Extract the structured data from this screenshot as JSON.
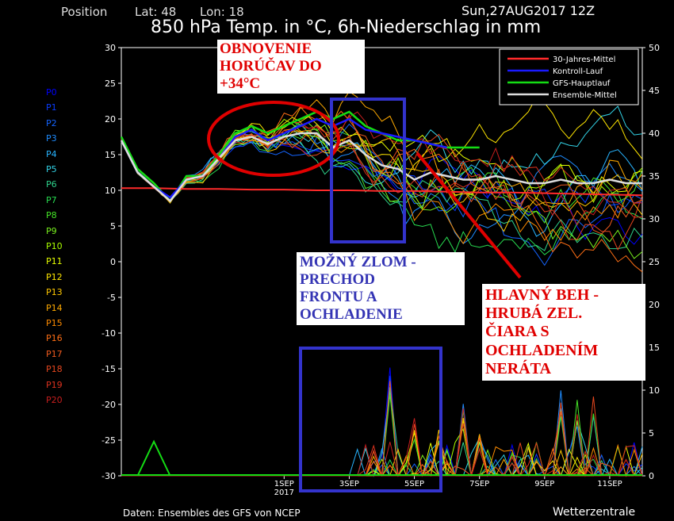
{
  "header": {
    "position_label": "Position",
    "lat_label": "Lat: 48",
    "lon_label": "Lon: 18",
    "datetime": "Sun,27AUG2017 12Z",
    "title": "850 hPa Temp. in °C, 6h-Niederschlag in mm"
  },
  "footer": {
    "source": "Daten: Ensembles des GFS von NCEP",
    "brand": "Wetterzentrale"
  },
  "annotations": {
    "heat": "OBNOVENIE\nHORÚČAV DO\n+34°C",
    "front": "MOŽNÝ ZLOM -\nPRECHOD\nFRONTU A\nOCHLADENIE",
    "main": "HLAVNÝ BEH -\nHRUBÁ ZEL.\nČIARA S\nOCHLADENÍM\nNERÁTA"
  },
  "members": [
    {
      "name": "P0",
      "color": "#0000ff"
    },
    {
      "name": "P1",
      "color": "#0a3cff"
    },
    {
      "name": "P2",
      "color": "#1464ff"
    },
    {
      "name": "P3",
      "color": "#1e8cff"
    },
    {
      "name": "P4",
      "color": "#28b4ff"
    },
    {
      "name": "P5",
      "color": "#32d2e6"
    },
    {
      "name": "P6",
      "color": "#2ed28c"
    },
    {
      "name": "P7",
      "color": "#28dc50"
    },
    {
      "name": "P8",
      "color": "#46e628"
    },
    {
      "name": "P9",
      "color": "#78f01e"
    },
    {
      "name": "P10",
      "color": "#aaff00"
    },
    {
      "name": "P11",
      "color": "#e6ff00"
    },
    {
      "name": "P12",
      "color": "#ffe600"
    },
    {
      "name": "P13",
      "color": "#ffc800"
    },
    {
      "name": "P14",
      "color": "#ffaa00"
    },
    {
      "name": "P15",
      "color": "#ff8c00"
    },
    {
      "name": "P16",
      "color": "#ff6e14"
    },
    {
      "name": "P17",
      "color": "#f05a1e"
    },
    {
      "name": "P18",
      "color": "#e6461e"
    },
    {
      "name": "P19",
      "color": "#dc321e"
    },
    {
      "name": "P20",
      "color": "#c81e1e"
    }
  ],
  "chart_data": {
    "type": "line",
    "title": "850 hPa Temp. in °C, 6h-Niederschlag in mm",
    "x_ticks": [
      "1SEP 2017",
      "3SEP",
      "5SEP",
      "7SEP",
      "9SEP",
      "11SEP"
    ],
    "x_range_days_after_init": [
      0,
      16
    ],
    "y_left": {
      "label": "850 hPa Temp. °C",
      "range": [
        -30,
        30
      ],
      "ticks": [
        30,
        25,
        20,
        15,
        10,
        5,
        0,
        -5,
        -10,
        -15,
        -20,
        -25,
        -30
      ]
    },
    "y_right": {
      "label": "6h-Niederschlag mm",
      "range": [
        0,
        50
      ],
      "ticks": [
        50,
        45,
        40,
        35,
        30,
        25,
        20,
        15,
        10,
        5,
        0
      ]
    },
    "legend": {
      "position": "top-right",
      "entries": [
        {
          "label": "30-Jahres-Mittel",
          "color": "#ff2a2a"
        },
        {
          "label": "Kontroll-Lauf",
          "color": "#1a1aff"
        },
        {
          "label": "GFS-Hauptlauf",
          "color": "#14dc14"
        },
        {
          "label": "Ensemble-Mittel",
          "color": "#dddddd"
        }
      ]
    },
    "series": [
      {
        "name": "30-Jahres-Mittel",
        "x": [
          0,
          1,
          2,
          3,
          4,
          5,
          6,
          7,
          8,
          9,
          10,
          11,
          12,
          13,
          14,
          15,
          16
        ],
        "values": [
          10.3,
          10.3,
          10.2,
          10.2,
          10.1,
          10.1,
          10.0,
          10.0,
          9.9,
          9.9,
          9.8,
          9.7,
          9.7,
          9.6,
          9.5,
          9.4,
          9.3
        ]
      },
      {
        "name": "GFS-Hauptlauf",
        "x": [
          0,
          0.5,
          1,
          1.5,
          2,
          2.5,
          3,
          3.5,
          4,
          4.5,
          5,
          5.5,
          6,
          6.5,
          7,
          7.5,
          8,
          8.5,
          9,
          9.5,
          10,
          10.5,
          11
        ],
        "values": [
          17.5,
          13,
          11,
          8.5,
          12,
          12,
          15,
          18,
          19,
          18,
          19,
          20,
          21,
          20,
          21,
          19,
          18,
          17,
          17,
          16.5,
          16,
          16,
          16
        ]
      },
      {
        "name": "Kontroll-Lauf",
        "x": [
          0,
          0.5,
          1,
          1.5,
          2,
          2.5,
          3,
          3.5,
          4,
          4.5,
          5,
          5.5,
          6,
          6.5,
          7,
          7.5,
          8,
          8.5,
          9,
          9.5,
          10
        ],
        "values": [
          17,
          12.5,
          10.5,
          9,
          11.5,
          12,
          14.5,
          17.5,
          18.5,
          17,
          18,
          19,
          20,
          19,
          20,
          18.5,
          18,
          17.5,
          17,
          16.5,
          16
        ]
      },
      {
        "name": "Ensemble-Mittel",
        "x": [
          0,
          0.5,
          1,
          1.5,
          2,
          2.5,
          3,
          3.5,
          4,
          4.5,
          5,
          5.5,
          6,
          6.5,
          7,
          7.5,
          8,
          8.5,
          9,
          9.5,
          10,
          10.5,
          11,
          11.5,
          12,
          12.5,
          13,
          13.5,
          14,
          14.5,
          15,
          15.5,
          16
        ],
        "values": [
          17,
          12.5,
          10.5,
          8.5,
          11.5,
          12,
          14.5,
          17,
          17.5,
          16.5,
          17.5,
          18,
          18,
          16,
          17,
          15,
          13.5,
          13,
          11.5,
          12.5,
          12,
          11.5,
          11.5,
          12,
          11.5,
          11,
          11,
          11.5,
          11,
          11,
          11.5,
          11,
          11
        ]
      }
    ],
    "precip_peaks": [
      {
        "day": 8.3,
        "mm": 14
      },
      {
        "day": 9.0,
        "mm": 7
      },
      {
        "day": 9.7,
        "mm": 6
      },
      {
        "day": 10.5,
        "mm": 9
      },
      {
        "day": 11.0,
        "mm": 5
      },
      {
        "day": 13.5,
        "mm": 11
      },
      {
        "day": 14.0,
        "mm": 9
      },
      {
        "day": 14.5,
        "mm": 10
      }
    ]
  }
}
